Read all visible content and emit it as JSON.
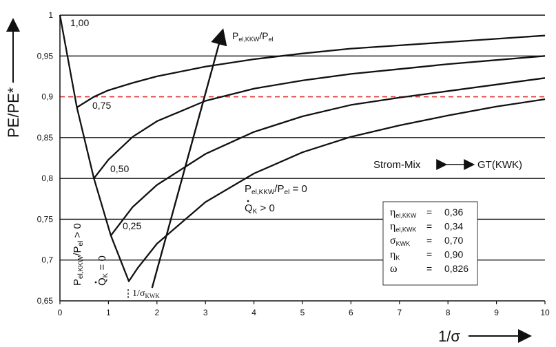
{
  "chart_data": {
    "type": "line",
    "xlabel": "1/σ",
    "ylabel": "PE/PE*",
    "xlim": [
      0,
      10
    ],
    "ylim": [
      0.65,
      1.0
    ],
    "x_ticks": [
      "0",
      "1",
      "2",
      "3",
      "4",
      "5",
      "6",
      "7",
      "8",
      "9",
      "10"
    ],
    "y_ticks": [
      "0,65",
      "0,7",
      "0,75",
      "0,8",
      "0,85",
      "0,9",
      "0,95",
      "1"
    ],
    "grid": "horizontal",
    "reference_line": {
      "y": 0.9,
      "color": "#e03030",
      "style": "dashed"
    },
    "series": [
      {
        "name": "1,00",
        "label": "1,00",
        "points": [
          [
            0.0,
            1.0
          ]
        ]
      },
      {
        "name": "0,75",
        "label": "0,75",
        "points": [
          [
            0.35,
            0.887
          ],
          [
            0.7,
            0.9
          ],
          [
            1.0,
            0.908
          ],
          [
            1.5,
            0.917
          ],
          [
            2.0,
            0.925
          ],
          [
            3.0,
            0.937
          ],
          [
            4.0,
            0.946
          ],
          [
            5.0,
            0.953
          ],
          [
            6.0,
            0.959
          ],
          [
            7.0,
            0.963
          ],
          [
            8.0,
            0.967
          ],
          [
            9.0,
            0.971
          ],
          [
            10.0,
            0.975
          ]
        ]
      },
      {
        "name": "0,50",
        "label": "0,50",
        "points": [
          [
            0.7,
            0.8
          ],
          [
            1.0,
            0.823
          ],
          [
            1.5,
            0.851
          ],
          [
            2.0,
            0.87
          ],
          [
            3.0,
            0.895
          ],
          [
            4.0,
            0.91
          ],
          [
            5.0,
            0.92
          ],
          [
            6.0,
            0.928
          ],
          [
            7.0,
            0.934
          ],
          [
            8.0,
            0.94
          ],
          [
            9.0,
            0.945
          ],
          [
            10.0,
            0.95
          ]
        ]
      },
      {
        "name": "0,25",
        "label": "0,25",
        "points": [
          [
            1.05,
            0.73
          ],
          [
            1.5,
            0.765
          ],
          [
            2.0,
            0.792
          ],
          [
            3.0,
            0.83
          ],
          [
            4.0,
            0.857
          ],
          [
            5.0,
            0.876
          ],
          [
            6.0,
            0.89
          ],
          [
            7.0,
            0.899
          ],
          [
            8.0,
            0.907
          ],
          [
            9.0,
            0.915
          ],
          [
            10.0,
            0.923
          ]
        ]
      },
      {
        "name": "Pel,KKW/Pel = 0",
        "label": "P el,KKW /P el = 0",
        "points": [
          [
            1.6,
            0.69
          ],
          [
            2.0,
            0.72
          ],
          [
            3.0,
            0.771
          ],
          [
            4.0,
            0.806
          ],
          [
            5.0,
            0.832
          ],
          [
            6.0,
            0.851
          ],
          [
            7.0,
            0.865
          ],
          [
            8.0,
            0.877
          ],
          [
            9.0,
            0.888
          ],
          [
            10.0,
            0.897
          ]
        ]
      },
      {
        "name": "Q̇K = 0",
        "label": "Q̇K = 0",
        "points": [
          [
            0.0,
            1.0
          ],
          [
            0.35,
            0.887
          ],
          [
            0.7,
            0.8
          ],
          [
            1.05,
            0.73
          ],
          [
            1.42,
            0.674
          ],
          [
            1.6,
            0.69
          ]
        ]
      }
    ],
    "arrow": {
      "from": [
        1.9,
        0.666
      ],
      "to": [
        3.35,
        0.98
      ]
    },
    "annotations": {
      "arrow_label_main": "P",
      "arrow_label_sub1": "el,KKW",
      "arrow_label_mid": "/P",
      "arrow_label_sub2": "el",
      "zero_label_main": "P",
      "zero_label_sub1": "el,KKW",
      "zero_label_mid": "/P",
      "zero_label_sub2": "el",
      "zero_label_tail": " = 0",
      "qk_main": "Q",
      "qk_sub": "K",
      "qk_gt_tail": " > 0",
      "vertical_main": "P",
      "vertical_sub1": "el,KKW",
      "vertical_mid": "/P",
      "vertical_sub2": "el",
      "vertical_tail": " > 0",
      "vertical_qk_main": "Q",
      "vertical_qk_sub": "K",
      "vertical_qk_tail": " = 0",
      "sigma_min_main": "1/σ",
      "sigma_min_sub": "KWK",
      "strom_mix": "Strom-Mix",
      "gt_kwk": "GT(KWK)"
    },
    "parameters": [
      {
        "sym": "η",
        "sub": "el,KKW",
        "eq": "=",
        "val": "0,36"
      },
      {
        "sym": "η",
        "sub": "el,KWK",
        "eq": "=",
        "val": "0,34"
      },
      {
        "sym": "σ",
        "sub": "KWK",
        "eq": "=",
        "val": "0,70"
      },
      {
        "sym": "η",
        "sub": "K",
        "eq": "=",
        "val": "0,90"
      },
      {
        "sym": "ω",
        "sub": "",
        "eq": "=",
        "val": "0,826"
      }
    ]
  }
}
